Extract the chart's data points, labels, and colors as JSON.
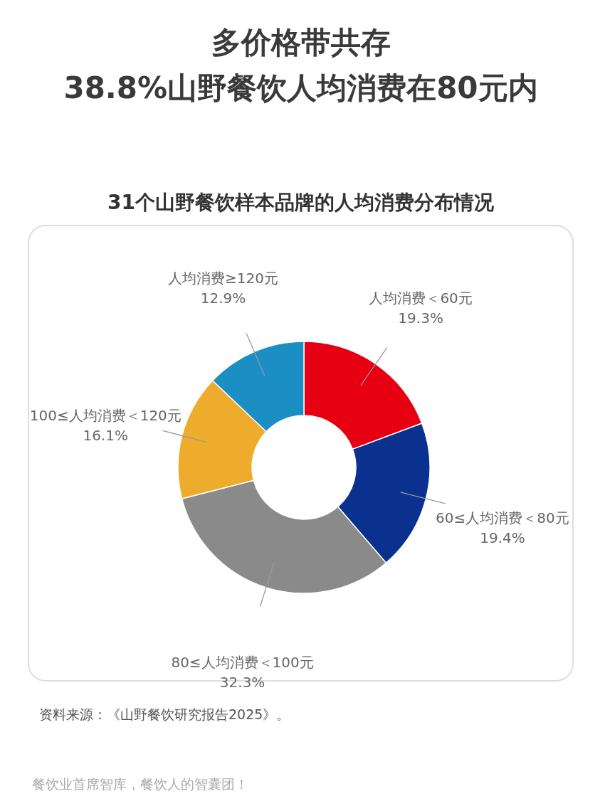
{
  "chart_data": {
    "type": "donut",
    "title": "多价格带共存\n38.8%山野餐饮人均消费在80元内",
    "subtitle": "31个山野餐饮样本品牌的人均消费分布情况",
    "categories": [
      "人均消费＜60元",
      "60≤人均消费＜80元",
      "80≤人均消费＜100元",
      "100≤人均消费＜120元",
      "人均消费≥120元"
    ],
    "values": [
      19.3,
      19.4,
      32.3,
      16.1,
      12.9
    ],
    "value_labels": [
      "19.3%",
      "19.4%",
      "32.3%",
      "16.1%",
      "12.9%"
    ],
    "colors": [
      "#e60012",
      "#0b318f",
      "#8a8a8a",
      "#edac2c",
      "#1b8ec4"
    ],
    "annotations": [
      "资料来源：《山野餐饮研究报告2025》。",
      "餐饮业首席智库，餐饮人的智囊团！"
    ]
  }
}
